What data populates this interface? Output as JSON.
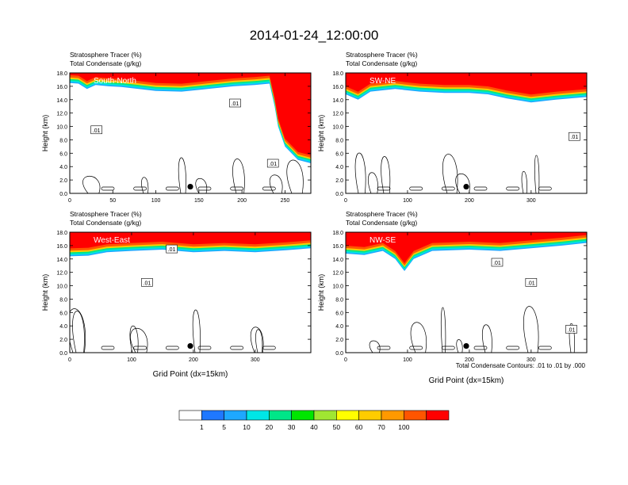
{
  "title": "2014-01-24_12:00:00",
  "panel_header": {
    "line1": "Stratosphere Tracer   (%)",
    "line2": "Total Condensate   (g/kg)"
  },
  "axes": {
    "ylabel": "Height (km)",
    "xlabel": "Grid Point (dx=15km)",
    "yticks": [
      "0.0",
      "2.0",
      "4.0",
      "6.0",
      "8.0",
      "10.0",
      "12.0",
      "14.0",
      "16.0",
      "18.0"
    ],
    "ylim": [
      0,
      18
    ]
  },
  "contour_note": "Total Condensate Contours: .01 to .01 by .000",
  "colorbar": {
    "colors": [
      "#ffffff",
      "#1f78ff",
      "#1ea8ff",
      "#00e6e6",
      "#00e688",
      "#00e600",
      "#a0e632",
      "#ffff00",
      "#ffcc00",
      "#ff9900",
      "#ff5500",
      "#ff0000"
    ],
    "labels": [
      "1",
      "5",
      "10",
      "20",
      "30",
      "40",
      "50",
      "60",
      "70",
      "100"
    ]
  },
  "colors": {
    "tropo": "#ffffff",
    "strat_top": "#ff0000",
    "strat_mid": "#ff5500",
    "transition": [
      "#ffcc00",
      "#00e688",
      "#00e6e6",
      "#1ea8ff"
    ]
  },
  "chart_data": [
    {
      "type": "heatmap",
      "label": "South-North",
      "xlim": [
        0,
        280
      ],
      "xticks": [
        0,
        50,
        100,
        150,
        200,
        250
      ],
      "tropopause_km": [
        [
          0,
          16.5
        ],
        [
          10,
          16.4
        ],
        [
          20,
          15.6
        ],
        [
          30,
          16.2
        ],
        [
          45,
          16.0
        ],
        [
          60,
          15.9
        ],
        [
          80,
          15.6
        ],
        [
          100,
          15.3
        ],
        [
          130,
          15.2
        ],
        [
          160,
          15.6
        ],
        [
          190,
          16.0
        ],
        [
          215,
          16.2
        ],
        [
          232,
          16.4
        ],
        [
          238,
          13.0
        ],
        [
          242,
          10.0
        ],
        [
          250,
          7.0
        ],
        [
          265,
          5.0
        ],
        [
          280,
          4.5
        ]
      ],
      "contour_labels": [
        {
          "text": ".01",
          "x": 31,
          "y": 9.5
        },
        {
          "text": ".01",
          "x": 192,
          "y": 13.5
        },
        {
          "text": ".01",
          "x": 236,
          "y": 4.5
        }
      ],
      "marker": {
        "x": 140,
        "y": 1.0
      }
    },
    {
      "type": "heatmap",
      "label": "SW-NE",
      "xlim": [
        0,
        390
      ],
      "xticks": [
        0,
        100,
        200,
        300
      ],
      "tropopause_km": [
        [
          0,
          14.8
        ],
        [
          20,
          14.0
        ],
        [
          40,
          15.2
        ],
        [
          80,
          15.6
        ],
        [
          120,
          15.2
        ],
        [
          160,
          15.0
        ],
        [
          200,
          15.0
        ],
        [
          230,
          14.8
        ],
        [
          260,
          14.2
        ],
        [
          300,
          13.6
        ],
        [
          340,
          14.0
        ],
        [
          390,
          14.4
        ]
      ],
      "contour_labels": [
        {
          "text": ".01",
          "x": 370,
          "y": 8.5
        }
      ],
      "marker": {
        "x": 195,
        "y": 1.0
      }
    },
    {
      "type": "heatmap",
      "label": "West-East",
      "xlim": [
        0,
        390
      ],
      "xticks": [
        0,
        100,
        200,
        300
      ],
      "tropopause_km": [
        [
          0,
          14.4
        ],
        [
          30,
          14.5
        ],
        [
          60,
          15.0
        ],
        [
          100,
          15.2
        ],
        [
          150,
          15.4
        ],
        [
          200,
          15.0
        ],
        [
          250,
          15.2
        ],
        [
          300,
          15.0
        ],
        [
          350,
          15.3
        ],
        [
          390,
          15.6
        ]
      ],
      "contour_labels": [
        {
          "text": ".01",
          "x": 165,
          "y": 15.5
        },
        {
          "text": ".01",
          "x": 125,
          "y": 10.5
        }
      ],
      "marker": {
        "x": 195,
        "y": 1.0
      }
    },
    {
      "type": "heatmap",
      "label": "NW-SE",
      "xlim": [
        0,
        390
      ],
      "xticks": [
        0,
        100,
        200,
        300
      ],
      "tropopause_km": [
        [
          0,
          14.8
        ],
        [
          30,
          14.6
        ],
        [
          60,
          15.2
        ],
        [
          80,
          14.0
        ],
        [
          95,
          12.2
        ],
        [
          110,
          14.0
        ],
        [
          140,
          15.2
        ],
        [
          200,
          15.4
        ],
        [
          250,
          15.2
        ],
        [
          300,
          15.6
        ],
        [
          350,
          16.0
        ],
        [
          390,
          16.4
        ]
      ],
      "contour_labels": [
        {
          "text": ".01",
          "x": 245,
          "y": 13.5
        },
        {
          "text": ".01",
          "x": 300,
          "y": 10.5
        },
        {
          "text": ".01",
          "x": 365,
          "y": 3.5
        }
      ],
      "marker": {
        "x": 195,
        "y": 1.0
      }
    }
  ]
}
